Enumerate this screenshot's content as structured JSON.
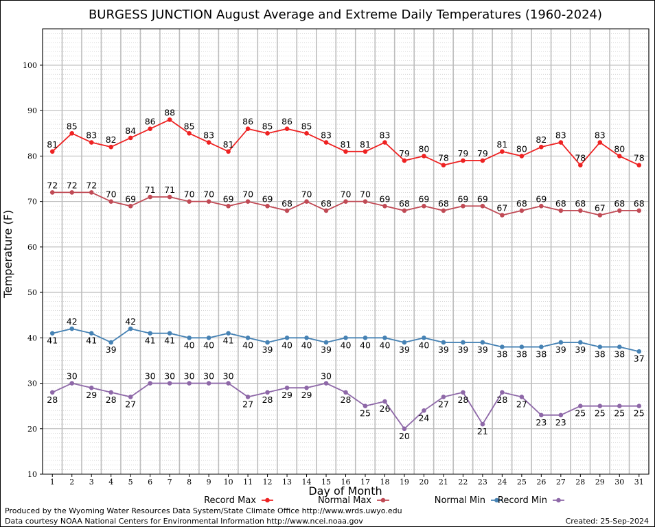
{
  "chart_data": {
    "type": "line",
    "title": "BURGESS JUNCTION August Average and Extreme Daily Temperatures (1960-2024)",
    "xlabel": "Day of Month",
    "ylabel": "Temperature (F)",
    "ylim": [
      10,
      108
    ],
    "yticks": [
      10,
      20,
      30,
      40,
      50,
      60,
      70,
      80,
      90,
      100
    ],
    "grid": true,
    "legend_position": "bottom",
    "categories": [
      "1",
      "2",
      "3",
      "4",
      "5",
      "6",
      "7",
      "8",
      "9",
      "10",
      "11",
      "12",
      "13",
      "14",
      "15",
      "16",
      "17",
      "18",
      "19",
      "20",
      "21",
      "22",
      "23",
      "24",
      "25",
      "26",
      "27",
      "28",
      "29",
      "30",
      "31"
    ],
    "series": [
      {
        "name": "Record Max",
        "color": "#ee2222",
        "values": [
          81,
          85,
          83,
          82,
          84,
          86,
          88,
          85,
          83,
          81,
          86,
          85,
          86,
          85,
          83,
          81,
          81,
          83,
          79,
          80,
          78,
          79,
          79,
          81,
          80,
          82,
          83,
          78,
          83,
          80,
          78
        ]
      },
      {
        "name": "Normal Max",
        "color": "#c04a55",
        "values": [
          72,
          72,
          72,
          70,
          69,
          71,
          71,
          70,
          70,
          69,
          70,
          69,
          68,
          70,
          68,
          70,
          70,
          69,
          68,
          69,
          68,
          69,
          69,
          67,
          68,
          69,
          68,
          68,
          67,
          68,
          68
        ]
      },
      {
        "name": "Normal Min",
        "color": "#4682b4",
        "values": [
          41,
          42,
          41,
          39,
          42,
          41,
          41,
          40,
          40,
          41,
          40,
          39,
          40,
          40,
          39,
          40,
          40,
          40,
          39,
          40,
          39,
          39,
          39,
          38,
          38,
          38,
          39,
          39,
          38,
          38,
          37
        ]
      },
      {
        "name": "Record Min",
        "color": "#8e68a8",
        "values": [
          28,
          30,
          29,
          28,
          27,
          30,
          30,
          30,
          30,
          30,
          27,
          28,
          29,
          29,
          30,
          28,
          25,
          26,
          20,
          24,
          27,
          28,
          21,
          28,
          27,
          23,
          23,
          25,
          25,
          25,
          25
        ]
      }
    ]
  },
  "footer": {
    "credit_line1": "Produced by the Wyoming Water Resources Data System/State Climate Office http://www.wrds.uwyo.edu",
    "credit_line2": "Data courtesy NOAA National Centers for Environmental Information http://www.ncei.noaa.gov",
    "created": "Created:  25-Sep-2024"
  }
}
